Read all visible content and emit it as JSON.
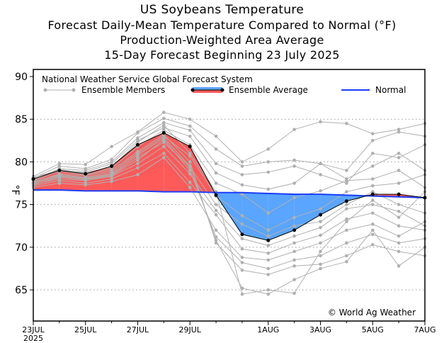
{
  "chart_data": {
    "type": "line",
    "title": "US Soybeans Temperature",
    "subtitles": [
      "Forecast Daily-Mean Temperature Compared to Normal (°F)",
      "Production-Weighted Area Average",
      "15-Day Forecast Beginning 23 July 2025"
    ],
    "ylabel": "°F",
    "ylim": [
      61.35,
      90.83
    ],
    "yticks": [
      65,
      70,
      75,
      80,
      85,
      90
    ],
    "x": [
      "23JUL",
      "24JUL",
      "25JUL",
      "26JUL",
      "27JUL",
      "28JUL",
      "29JUL",
      "30JUL",
      "31JUL",
      "1AUG",
      "2AUG",
      "3AUG",
      "4AUG",
      "5AUG",
      "6AUG",
      "7AUG"
    ],
    "xtick_labels": [
      "23JUL",
      "25JUL",
      "27JUL",
      "29JUL",
      "1AUG",
      "3AUG",
      "5AUG",
      "7AUG"
    ],
    "xtick_year": "2025",
    "grid": "horizontal dotted",
    "model_label": "National Weather Service Global Forecast System",
    "legend": {
      "members": "Ensemble Members",
      "average": "Ensemble Average",
      "normal": "Normal",
      "placement": "top"
    },
    "copyright": "© World Ag Weather",
    "colors": {
      "members": "#b0b0b0",
      "average": "#000000",
      "above": "#ff5a5a",
      "below": "#5aa5ff",
      "normal": "#1a3cff"
    },
    "series": [
      {
        "name": "Ensemble Average",
        "values": [
          78.0,
          79.0,
          78.6,
          79.5,
          82.0,
          83.4,
          81.8,
          76.1,
          71.5,
          70.8,
          72.0,
          73.8,
          75.4,
          76.2,
          76.2,
          75.8
        ]
      },
      {
        "name": "Normal",
        "values": [
          76.7,
          76.7,
          76.6,
          76.6,
          76.6,
          76.5,
          76.5,
          76.4,
          76.4,
          76.3,
          76.2,
          76.2,
          76.1,
          76.0,
          75.9,
          75.8
        ]
      }
    ],
    "members": [
      [
        78.3,
        79.8,
        79.7,
        81.8,
        83.5,
        85.8,
        85.0,
        83.0,
        80.0,
        81.5,
        83.8,
        84.7,
        84.5,
        83.3,
        83.8,
        84.5
      ],
      [
        78.1,
        79.5,
        79.2,
        80.3,
        83.4,
        85.1,
        84.2,
        81.5,
        79.5,
        80.0,
        80.2,
        79.8,
        79.0,
        82.5,
        83.5,
        83.0
      ],
      [
        77.9,
        79.2,
        79.0,
        80.0,
        82.8,
        84.6,
        83.7,
        79.8,
        78.5,
        78.8,
        79.5,
        78.5,
        77.5,
        81.0,
        80.5,
        82.0
      ],
      [
        78.2,
        79.0,
        78.8,
        79.8,
        82.5,
        84.0,
        83.0,
        78.7,
        77.3,
        76.8,
        77.5,
        79.8,
        78.0,
        79.5,
        81.0,
        79.0
      ],
      [
        77.8,
        78.9,
        78.5,
        79.2,
        81.8,
        83.7,
        82.0,
        77.5,
        76.2,
        74.0,
        75.8,
        76.6,
        77.8,
        78.0,
        79.0,
        77.0
      ],
      [
        77.7,
        78.5,
        78.2,
        78.8,
        81.0,
        83.0,
        80.7,
        76.0,
        73.7,
        72.0,
        73.5,
        74.5,
        76.5,
        77.2,
        77.5,
        78.5
      ],
      [
        77.5,
        78.3,
        78.0,
        78.5,
        80.5,
        82.3,
        79.4,
        75.0,
        72.7,
        71.3,
        72.5,
        73.0,
        75.0,
        76.5,
        75.0,
        74.0
      ],
      [
        77.4,
        78.0,
        77.8,
        78.3,
        79.8,
        81.8,
        78.6,
        74.3,
        71.0,
        70.2,
        71.3,
        72.3,
        74.5,
        75.0,
        74.2,
        72.5
      ],
      [
        77.2,
        77.8,
        77.5,
        78.0,
        79.3,
        81.0,
        77.6,
        73.8,
        69.8,
        69.3,
        70.5,
        71.4,
        73.3,
        74.0,
        72.5,
        72.0
      ],
      [
        77.0,
        77.5,
        77.3,
        77.7,
        78.5,
        80.5,
        77.0,
        72.0,
        68.8,
        68.5,
        69.5,
        70.5,
        72.0,
        72.7,
        71.3,
        73.0
      ],
      [
        77.3,
        78.2,
        77.9,
        78.4,
        80.2,
        82.6,
        79.0,
        71.2,
        68.2,
        67.5,
        68.5,
        69.0,
        70.5,
        71.5,
        70.5,
        71.0
      ],
      [
        77.6,
        78.6,
        78.4,
        79.0,
        81.2,
        83.2,
        80.0,
        70.5,
        67.3,
        66.8,
        67.8,
        68.0,
        69.0,
        70.3,
        69.5,
        69.0
      ],
      [
        77.5,
        78.4,
        78.1,
        78.6,
        80.8,
        82.8,
        79.5,
        70.8,
        65.2,
        64.5,
        66.2,
        67.5,
        68.3,
        72.0,
        67.8,
        70.0
      ],
      [
        77.9,
        79.1,
        78.7,
        79.4,
        82.3,
        84.3,
        81.0,
        76.5,
        64.5,
        65.0,
        64.6,
        69.5,
        73.0,
        75.5,
        73.5,
        76.5
      ]
    ]
  }
}
